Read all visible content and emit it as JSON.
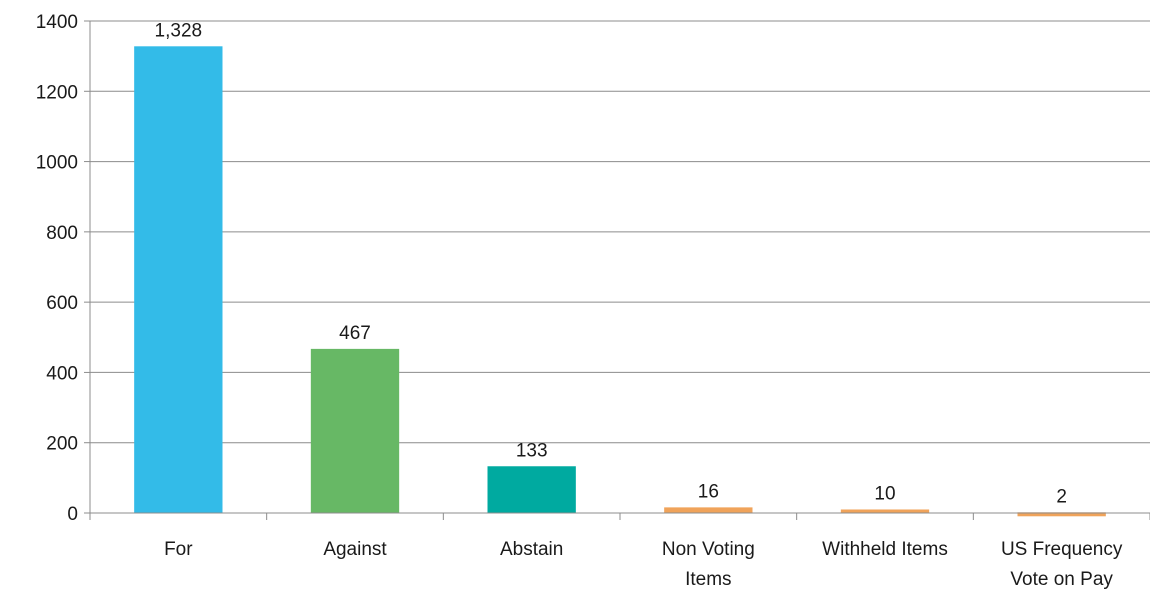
{
  "chart_data": {
    "type": "bar",
    "categories": [
      [
        "For"
      ],
      [
        "Against"
      ],
      [
        "Abstain"
      ],
      [
        "Non Voting",
        "Items"
      ],
      [
        "Withheld Items"
      ],
      [
        "US Frequency",
        "Vote on Pay"
      ]
    ],
    "values": [
      1328,
      467,
      133,
      16,
      10,
      2
    ],
    "data_labels": [
      "1,328",
      "467",
      "133",
      "16",
      "10",
      "2"
    ],
    "bar_colors": [
      "#33bbe8",
      "#67b865",
      "#00aaa0",
      "#f0a35a",
      "#f0a35a",
      "#f0a35a"
    ],
    "title": "",
    "xlabel": "",
    "ylabel": "",
    "ylim": [
      0,
      1400
    ],
    "yticks": [
      0,
      200,
      400,
      600,
      800,
      1000,
      1200,
      1400
    ],
    "grid": true
  }
}
